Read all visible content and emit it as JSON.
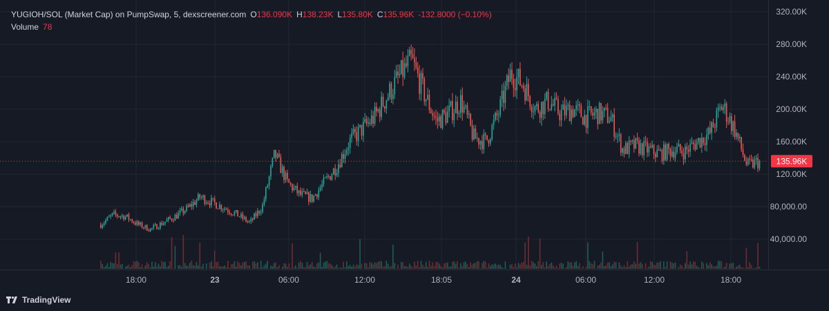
{
  "legend": {
    "symbol": "YUGIOH/SOL (Market Cap) on PumpSwap, 5, dexscreener.com",
    "open_label": "O",
    "open": "136.090K",
    "high_label": "H",
    "high": "138.23K",
    "low_label": "L",
    "low": "135.80K",
    "close_label": "C",
    "close": "135.96K",
    "change": "-132.8000 (−0.10%)",
    "volume_label": "Volume",
    "volume": "78"
  },
  "brand": {
    "name": "TradingView"
  },
  "colors": {
    "up": "#26a69a",
    "down": "#ef5350",
    "price_tag": "#f23645",
    "background": "#161a25",
    "grid": "#232733",
    "axis_text": "#b2b5be"
  },
  "chart_data": {
    "type": "candlestick",
    "timeframe": "5",
    "y_axis": {
      "ticks": [
        40000,
        80000,
        120000,
        160000,
        200000,
        240000,
        280000,
        320000
      ],
      "tick_labels": [
        "40,000.00",
        "80,000.00",
        "120.00K",
        "160.00K",
        "200.00K",
        "240.00K",
        "280.00K",
        "320.00K"
      ],
      "range": [
        0,
        325000
      ]
    },
    "x_axis": {
      "tick_labels": [
        "18:00",
        "23",
        "06:00",
        "12:00",
        "18:05",
        "24",
        "06:00",
        "12:00",
        "18:00"
      ],
      "bold_labels": [
        "23",
        "24"
      ]
    },
    "last_price": 135960,
    "last_price_label": "135.96K",
    "volume_last": 78,
    "series_close_approx": [
      [
        "22 15:30",
        58000
      ],
      [
        "22 16:30",
        70000
      ],
      [
        "22 17:30",
        68000
      ],
      [
        "22 18:30",
        58000
      ],
      [
        "22 19:30",
        52000
      ],
      [
        "22 20:30",
        60000
      ],
      [
        "22 21:30",
        68000
      ],
      [
        "22 22:30",
        78000
      ],
      [
        "22 23:30",
        92000
      ],
      [
        "23 00:30",
        85000
      ],
      [
        "23 01:30",
        78000
      ],
      [
        "23 02:30",
        70000
      ],
      [
        "23 03:30",
        60000
      ],
      [
        "23 04:30",
        80000
      ],
      [
        "23 05:30",
        145000
      ],
      [
        "23 06:30",
        110000
      ],
      [
        "23 07:30",
        95000
      ],
      [
        "23 08:30",
        90000
      ],
      [
        "23 09:30",
        110000
      ],
      [
        "23 10:30",
        130000
      ],
      [
        "23 11:30",
        160000
      ],
      [
        "23 12:30",
        175000
      ],
      [
        "23 13:30",
        190000
      ],
      [
        "23 14:30",
        215000
      ],
      [
        "23 15:30",
        240000
      ],
      [
        "23 16:30",
        260000
      ],
      [
        "23 17:30",
        220000
      ],
      [
        "23 18:30",
        185000
      ],
      [
        "23 19:30",
        195000
      ],
      [
        "23 20:30",
        210000
      ],
      [
        "23 21:30",
        165000
      ],
      [
        "23 22:30",
        160000
      ],
      [
        "23 23:30",
        195000
      ],
      [
        "24 00:30",
        245000
      ],
      [
        "24 01:30",
        230000
      ],
      [
        "24 02:30",
        200000
      ],
      [
        "24 03:30",
        210000
      ],
      [
        "24 04:30",
        195000
      ],
      [
        "24 05:30",
        200000
      ],
      [
        "24 06:30",
        190000
      ],
      [
        "24 07:30",
        195000
      ],
      [
        "24 08:30",
        190000
      ],
      [
        "24 09:30",
        150000
      ],
      [
        "24 10:30",
        155000
      ],
      [
        "24 11:30",
        150000
      ],
      [
        "24 12:30",
        145000
      ],
      [
        "24 13:30",
        150000
      ],
      [
        "24 14:30",
        148000
      ],
      [
        "24 15:30",
        160000
      ],
      [
        "24 16:30",
        170000
      ],
      [
        "24 17:30",
        205000
      ],
      [
        "24 18:30",
        175000
      ],
      [
        "24 19:30",
        130000
      ],
      [
        "24 20:00",
        135960
      ]
    ]
  }
}
